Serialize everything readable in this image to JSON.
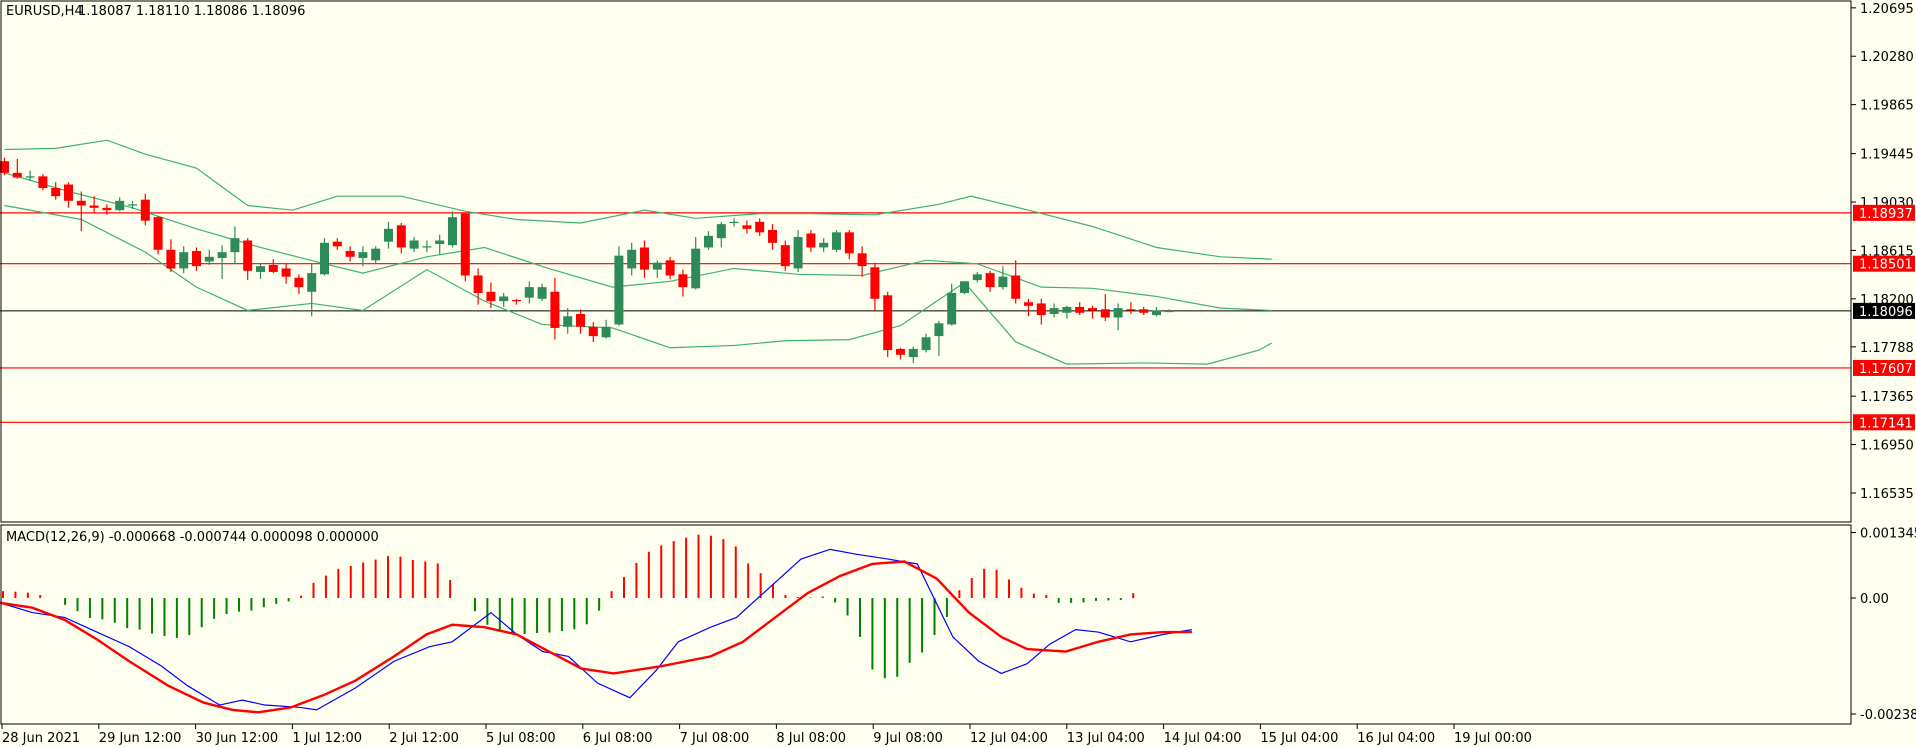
{
  "header": {
    "symbol": "EURUSD,H4",
    "ohlc": "1.18087 1.18110 1.18086 1.18096"
  },
  "macd_header": "MACD(12,26,9) -0.000668 -0.000744 0.000098 0.000000",
  "colors": {
    "background": "#fffff0",
    "bull": "#2e8b57",
    "bear": "#ff0000",
    "bands": "#3cb371",
    "hline": "#ff0000",
    "current": "#000000",
    "macd_main": "#0000ff",
    "macd_signal": "#ff0000"
  },
  "chart_data": {
    "type": "candlestick",
    "symbol": "EURUSD",
    "timeframe": "H4",
    "price_ticks": [
      "1.20695",
      "1.20280",
      "1.19865",
      "1.19445",
      "1.19030",
      "1.18615",
      "1.18200",
      "1.17788",
      "1.17365",
      "1.16950",
      "1.16535"
    ],
    "price_range": [
      1.16286,
      1.20745
    ],
    "macd_ticks": [
      "0.001345",
      "0.00",
      "-0.002385"
    ],
    "macd_range": [
      -0.00259,
      0.00148
    ],
    "x_labels": [
      "28 Jun 2021",
      "29 Jun 12:00",
      "30 Jun 12:00",
      "1 Jul 12:00",
      "2 Jul 12:00",
      "5 Jul 08:00",
      "6 Jul 08:00",
      "7 Jul 08:00",
      "8 Jul 08:00",
      "9 Jul 08:00",
      "12 Jul 04:00",
      "13 Jul 04:00",
      "14 Jul 04:00",
      "15 Jul 04:00",
      "16 Jul 04:00",
      "19 Jul 00:00"
    ],
    "levels": [
      {
        "value": 1.18937,
        "label": "1.18937"
      },
      {
        "value": 1.18501,
        "label": "1.18501"
      },
      {
        "value": 1.17607,
        "label": "1.17607"
      },
      {
        "value": 1.17141,
        "label": "1.17141"
      }
    ],
    "current_price": {
      "value": 1.18096,
      "label": "1.18096"
    },
    "candles": [
      [
        1.1938,
        1.1941,
        1.1926,
        1.1928
      ],
      [
        1.1928,
        1.194,
        1.1923,
        1.1924
      ],
      [
        1.1924,
        1.193,
        1.1921,
        1.1925
      ],
      [
        1.1925,
        1.1927,
        1.1913,
        1.1915
      ],
      [
        1.1915,
        1.192,
        1.1905,
        1.1908
      ],
      [
        1.1918,
        1.192,
        1.1898,
        1.1904
      ],
      [
        1.1904,
        1.1912,
        1.1878,
        1.19
      ],
      [
        1.19,
        1.1908,
        1.1894,
        1.1898
      ],
      [
        1.1898,
        1.1901,
        1.1892,
        1.1896
      ],
      [
        1.1896,
        1.1907,
        1.1895,
        1.1904
      ],
      [
        1.19,
        1.1904,
        1.1897,
        1.1901
      ],
      [
        1.1905,
        1.191,
        1.1883,
        1.1887
      ],
      [
        1.189,
        1.1891,
        1.1858,
        1.1862
      ],
      [
        1.1862,
        1.1871,
        1.1843,
        1.1846
      ],
      [
        1.1846,
        1.1865,
        1.1842,
        1.186
      ],
      [
        1.1861,
        1.1864,
        1.1844,
        1.1848
      ],
      [
        1.1852,
        1.1862,
        1.1849,
        1.1856
      ],
      [
        1.1855,
        1.1866,
        1.1837,
        1.186
      ],
      [
        1.186,
        1.1882,
        1.185,
        1.1872
      ],
      [
        1.187,
        1.1872,
        1.1836,
        1.1844
      ],
      [
        1.1843,
        1.185,
        1.1837,
        1.1848
      ],
      [
        1.1849,
        1.1854,
        1.1842,
        1.1843
      ],
      [
        1.1846,
        1.185,
        1.1833,
        1.1839
      ],
      [
        1.1838,
        1.1841,
        1.1824,
        1.183
      ],
      [
        1.1826,
        1.185,
        1.1805,
        1.1842
      ],
      [
        1.1841,
        1.1872,
        1.184,
        1.1868
      ],
      [
        1.1869,
        1.1872,
        1.1862,
        1.1865
      ],
      [
        1.1861,
        1.1865,
        1.1852,
        1.1856
      ],
      [
        1.1855,
        1.1865,
        1.1848,
        1.186
      ],
      [
        1.1853,
        1.1865,
        1.185,
        1.1863
      ],
      [
        1.1869,
        1.1886,
        1.1863,
        1.188
      ],
      [
        1.1883,
        1.1885,
        1.1859,
        1.1864
      ],
      [
        1.1863,
        1.1873,
        1.186,
        1.187
      ],
      [
        1.1865,
        1.187,
        1.186,
        1.1865
      ],
      [
        1.1867,
        1.1875,
        1.1858,
        1.187
      ],
      [
        1.1866,
        1.1895,
        1.1864,
        1.189
      ],
      [
        1.1893,
        1.1894,
        1.1835,
        1.184
      ],
      [
        1.184,
        1.1846,
        1.1815,
        1.1825
      ],
      [
        1.1826,
        1.1834,
        1.1812,
        1.1818
      ],
      [
        1.1818,
        1.1825,
        1.1813,
        1.1822
      ],
      [
        1.1819,
        1.182,
        1.1815,
        1.1818
      ],
      [
        1.1821,
        1.1835,
        1.1816,
        1.183
      ],
      [
        1.182,
        1.1833,
        1.1818,
        1.183
      ],
      [
        1.1826,
        1.1838,
        1.1785,
        1.1795
      ],
      [
        1.1796,
        1.1812,
        1.179,
        1.1805
      ],
      [
        1.1807,
        1.1811,
        1.179,
        1.1796
      ],
      [
        1.1796,
        1.18,
        1.1783,
        1.1788
      ],
      [
        1.1787,
        1.1802,
        1.1786,
        1.1796
      ],
      [
        1.1798,
        1.1865,
        1.1797,
        1.1857
      ],
      [
        1.1846,
        1.1868,
        1.184,
        1.1862
      ],
      [
        1.1864,
        1.187,
        1.1838,
        1.1845
      ],
      [
        1.1845,
        1.1853,
        1.1838,
        1.1851
      ],
      [
        1.1853,
        1.1856,
        1.1837,
        1.184
      ],
      [
        1.1841,
        1.1845,
        1.1822,
        1.183
      ],
      [
        1.1829,
        1.1873,
        1.1828,
        1.1863
      ],
      [
        1.1864,
        1.1878,
        1.1862,
        1.1874
      ],
      [
        1.1872,
        1.1886,
        1.1864,
        1.1884
      ],
      [
        1.1885,
        1.1889,
        1.1882,
        1.1886
      ],
      [
        1.1883,
        1.1887,
        1.1876,
        1.188
      ],
      [
        1.1886,
        1.1889,
        1.1874,
        1.1877
      ],
      [
        1.1879,
        1.1884,
        1.1862,
        1.1868
      ],
      [
        1.1866,
        1.187,
        1.1844,
        1.1848
      ],
      [
        1.1846,
        1.1879,
        1.1843,
        1.1873
      ],
      [
        1.1876,
        1.1879,
        1.186,
        1.1864
      ],
      [
        1.1864,
        1.1872,
        1.186,
        1.1868
      ],
      [
        1.1862,
        1.1879,
        1.186,
        1.1877
      ],
      [
        1.1877,
        1.1879,
        1.1854,
        1.1859
      ],
      [
        1.1859,
        1.1865,
        1.1839,
        1.1848
      ],
      [
        1.1847,
        1.1851,
        1.181,
        1.182
      ],
      [
        1.1823,
        1.1826,
        1.177,
        1.1776
      ],
      [
        1.1777,
        1.1778,
        1.1768,
        1.1772
      ],
      [
        1.177,
        1.1779,
        1.1765,
        1.1777
      ],
      [
        1.1776,
        1.179,
        1.1774,
        1.1787
      ],
      [
        1.1788,
        1.1801,
        1.1771,
        1.1799
      ],
      [
        1.1798,
        1.1833,
        1.1797,
        1.1825
      ],
      [
        1.1825,
        1.1835,
        1.1824,
        1.1835
      ],
      [
        1.1836,
        1.1843,
        1.1834,
        1.1841
      ],
      [
        1.1842,
        1.1844,
        1.1826,
        1.183
      ],
      [
        1.183,
        1.1848,
        1.1828,
        1.1839
      ],
      [
        1.184,
        1.1853,
        1.1816,
        1.182
      ],
      [
        1.1817,
        1.182,
        1.1805,
        1.1814
      ],
      [
        1.1816,
        1.182,
        1.1798,
        1.1806
      ],
      [
        1.1807,
        1.1816,
        1.1804,
        1.1812
      ],
      [
        1.1808,
        1.1814,
        1.1803,
        1.1813
      ],
      [
        1.1813,
        1.1817,
        1.1806,
        1.1808
      ],
      [
        1.1812,
        1.1814,
        1.1803,
        1.181
      ],
      [
        1.1811,
        1.1824,
        1.1801,
        1.1804
      ],
      [
        1.1804,
        1.1816,
        1.1793,
        1.1812
      ],
      [
        1.1811,
        1.1817,
        1.1807,
        1.181
      ],
      [
        1.1811,
        1.1813,
        1.1806,
        1.1808
      ],
      [
        1.1806,
        1.1813,
        1.1805,
        1.181
      ],
      [
        1.18087,
        1.1811,
        1.18086,
        1.18096
      ]
    ],
    "bollinger": {
      "upper": [
        [
          0,
          1.1948
        ],
        [
          8,
          1.1949
        ],
        [
          16,
          1.1956
        ],
        [
          22,
          1.1944
        ],
        [
          30,
          1.1932
        ],
        [
          38,
          1.19
        ],
        [
          45,
          1.1896
        ],
        [
          52,
          1.1908
        ],
        [
          62,
          1.1908
        ],
        [
          72,
          1.1895
        ],
        [
          80,
          1.1888
        ],
        [
          90,
          1.1885
        ],
        [
          100,
          1.1896
        ],
        [
          108,
          1.1889
        ],
        [
          118,
          1.1893
        ],
        [
          126,
          1.1893
        ],
        [
          136,
          1.1892
        ],
        [
          146,
          1.1901
        ],
        [
          151,
          1.1908
        ],
        [
          160,
          1.1896
        ],
        [
          170,
          1.1882
        ],
        [
          180,
          1.1864
        ],
        [
          190,
          1.1856
        ],
        [
          198,
          1.1854
        ]
      ],
      "middle": [
        [
          0,
          1.1928
        ],
        [
          10,
          1.1912
        ],
        [
          20,
          1.1898
        ],
        [
          30,
          1.188
        ],
        [
          40,
          1.1864
        ],
        [
          50,
          1.185
        ],
        [
          56,
          1.1842
        ],
        [
          66,
          1.1856
        ],
        [
          75,
          1.1864
        ],
        [
          85,
          1.1846
        ],
        [
          95,
          1.183
        ],
        [
          104,
          1.1835
        ],
        [
          114,
          1.1846
        ],
        [
          124,
          1.1841
        ],
        [
          134,
          1.184
        ],
        [
          144,
          1.1853
        ],
        [
          152,
          1.185
        ],
        [
          162,
          1.183
        ],
        [
          170,
          1.1829
        ],
        [
          180,
          1.1822
        ],
        [
          190,
          1.1812
        ],
        [
          198,
          1.181
        ]
      ],
      "lower": [
        [
          0,
          1.19
        ],
        [
          12,
          1.1888
        ],
        [
          22,
          1.186
        ],
        [
          30,
          1.183
        ],
        [
          38,
          1.181
        ],
        [
          48,
          1.1816
        ],
        [
          56,
          1.181
        ],
        [
          66,
          1.1845
        ],
        [
          75,
          1.1818
        ],
        [
          84,
          1.1798
        ],
        [
          95,
          1.1795
        ],
        [
          104,
          1.1778
        ],
        [
          114,
          1.178
        ],
        [
          122,
          1.1784
        ],
        [
          132,
          1.1785
        ],
        [
          140,
          1.1797
        ],
        [
          150,
          1.1834
        ],
        [
          158,
          1.1783
        ],
        [
          166,
          1.1764
        ],
        [
          178,
          1.1765
        ],
        [
          188,
          1.1764
        ],
        [
          196,
          1.1776
        ],
        [
          198,
          1.1782
        ]
      ]
    },
    "macd": {
      "histogram": [
        0.00014,
        0.00013,
        0.00011,
        6e-05,
        0.0,
        -0.00014,
        -0.00027,
        -0.00041,
        -0.00044,
        -0.00051,
        -0.00062,
        -0.00065,
        -0.00073,
        -0.00078,
        -0.00082,
        -0.00076,
        -0.0006,
        -0.00043,
        -0.00033,
        -0.00028,
        -0.00026,
        -0.00019,
        -0.00012,
        -7e-05,
        5e-05,
        0.00031,
        0.00046,
        0.0006,
        0.00066,
        0.00073,
        0.00079,
        0.00086,
        0.00085,
        0.00078,
        0.00075,
        0.00071,
        0.00037,
        0.0,
        -0.00027,
        -0.00055,
        -0.00067,
        -0.00072,
        -0.00074,
        -0.00072,
        -0.00071,
        -0.00068,
        -0.00064,
        -0.00054,
        -0.00026,
        0.00014,
        0.00043,
        0.00072,
        0.00095,
        0.00108,
        0.00117,
        0.00124,
        0.0013,
        0.00128,
        0.00121,
        0.00106,
        0.00071,
        0.00051,
        0.00029,
        6e-05,
        2e-05,
        1e-05,
        3e-05,
        -9e-05,
        -0.00036,
        -0.0008,
        -0.00147,
        -0.00165,
        -0.00162,
        -0.00133,
        -0.00112,
        -0.00076,
        -0.00039,
        0.00016,
        0.00041,
        0.0006,
        0.00058,
        0.00038,
        0.00021,
        9e-05,
        6e-05,
        -0.0001,
        -0.0001,
        -9e-05,
        -6e-05,
        -5e-05,
        -4e-05,
        0.0001
      ],
      "main": [
        [
          0,
          -0.0001
        ],
        [
          10,
          -0.0003
        ],
        [
          20,
          -0.0004
        ],
        [
          30,
          -0.0007
        ],
        [
          40,
          -0.001
        ],
        [
          50,
          -0.0014
        ],
        [
          58,
          -0.0018
        ],
        [
          68,
          -0.0022
        ],
        [
          75,
          -0.0021
        ],
        [
          82,
          -0.0022
        ],
        [
          93,
          -0.00225
        ],
        [
          98,
          -0.0023
        ],
        [
          110,
          -0.00185
        ],
        [
          122,
          -0.0013
        ],
        [
          133,
          -0.001
        ],
        [
          140,
          -0.0009
        ],
        [
          150,
          -0.0004
        ],
        [
          152,
          -0.0003
        ],
        [
          160,
          -0.00075
        ],
        [
          168,
          -0.0011
        ],
        [
          176,
          -0.0012
        ],
        [
          185,
          -0.00175
        ],
        [
          195,
          -0.00205
        ],
        [
          203,
          -0.0015
        ],
        [
          210,
          -0.0009
        ],
        [
          220,
          -0.0006
        ],
        [
          228,
          -0.0004
        ],
        [
          238,
          0.0002
        ],
        [
          248,
          0.0008
        ],
        [
          257,
          0.001
        ],
        [
          265,
          0.0009
        ],
        [
          275,
          0.0008
        ],
        [
          284,
          0.0007
        ],
        [
          295,
          -0.0008
        ],
        [
          303,
          -0.0013
        ],
        [
          310,
          -0.00155
        ],
        [
          318,
          -0.00135
        ],
        [
          325,
          -0.00095
        ],
        [
          333,
          -0.00065
        ],
        [
          340,
          -0.0007
        ],
        [
          350,
          -0.0009
        ],
        [
          360,
          -0.00075
        ],
        [
          369,
          -0.00065
        ]
      ],
      "signal": [
        [
          0,
          -0.0001
        ],
        [
          10,
          -0.0002
        ],
        [
          20,
          -0.00045
        ],
        [
          30,
          -0.00085
        ],
        [
          40,
          -0.0013
        ],
        [
          52,
          -0.0018
        ],
        [
          63,
          -0.00215
        ],
        [
          72,
          -0.0023
        ],
        [
          80,
          -0.00235
        ],
        [
          90,
          -0.00225
        ],
        [
          100,
          -0.002
        ],
        [
          110,
          -0.0017
        ],
        [
          122,
          -0.0012
        ],
        [
          132,
          -0.00075
        ],
        [
          140,
          -0.00055
        ],
        [
          150,
          -0.0006
        ],
        [
          160,
          -0.00075
        ],
        [
          170,
          -0.0011
        ],
        [
          180,
          -0.00145
        ],
        [
          190,
          -0.00155
        ],
        [
          205,
          -0.0014
        ],
        [
          220,
          -0.0012
        ],
        [
          230,
          -0.0009
        ],
        [
          240,
          -0.0004
        ],
        [
          250,
          0.0001
        ],
        [
          260,
          0.00045
        ],
        [
          270,
          0.0007
        ],
        [
          280,
          0.00075
        ],
        [
          290,
          0.0004
        ],
        [
          300,
          -0.0003
        ],
        [
          310,
          -0.0008
        ],
        [
          318,
          -0.00105
        ],
        [
          330,
          -0.0011
        ],
        [
          340,
          -0.0009
        ],
        [
          350,
          -0.00075
        ],
        [
          360,
          -0.0007
        ],
        [
          369,
          -0.0007
        ]
      ]
    }
  }
}
